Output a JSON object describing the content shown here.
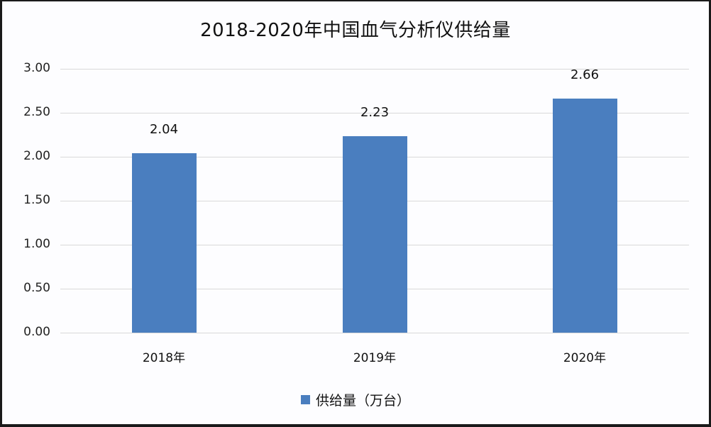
{
  "chart_data": {
    "type": "bar",
    "title": "2018-2020年中国血气分析仪供给量",
    "categories": [
      "2018年",
      "2019年",
      "2020年"
    ],
    "series": [
      {
        "name": "供给量（万台）",
        "values": [
          2.04,
          2.23,
          2.66
        ],
        "color": "#4a7ebf"
      }
    ],
    "data_labels": [
      "2.04",
      "2.23",
      "2.66"
    ],
    "xlabel": "",
    "ylabel": "",
    "ylim": [
      0,
      3
    ],
    "yticks": [
      "0.00",
      "0.50",
      "1.00",
      "1.50",
      "2.00",
      "2.50",
      "3.00"
    ],
    "grid": true,
    "legend_position": "bottom"
  }
}
